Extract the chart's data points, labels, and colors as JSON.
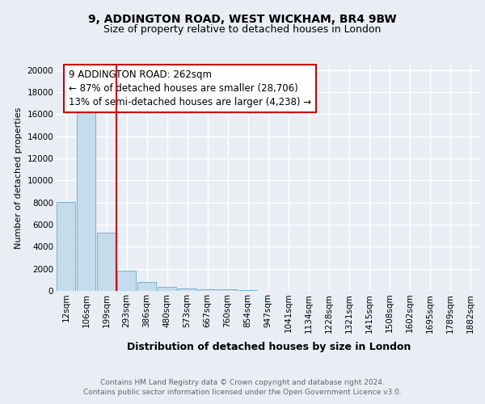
{
  "title1": "9, ADDINGTON ROAD, WEST WICKHAM, BR4 9BW",
  "title2": "Size of property relative to detached houses in London",
  "xlabel": "Distribution of detached houses by size in London",
  "ylabel": "Number of detached properties",
  "categories": [
    "12sqm",
    "106sqm",
    "199sqm",
    "293sqm",
    "386sqm",
    "480sqm",
    "573sqm",
    "667sqm",
    "760sqm",
    "854sqm",
    "947sqm",
    "1041sqm",
    "1134sqm",
    "1228sqm",
    "1321sqm",
    "1415sqm",
    "1508sqm",
    "1602sqm",
    "1695sqm",
    "1789sqm",
    "1882sqm"
  ],
  "values": [
    8050,
    16500,
    5300,
    1800,
    800,
    350,
    200,
    150,
    110,
    100,
    0,
    0,
    0,
    0,
    0,
    0,
    0,
    0,
    0,
    0,
    0
  ],
  "bar_color": "#c5dced",
  "bar_edge_color": "#7bafd4",
  "vline_x": 2.5,
  "vline_color": "#cc0000",
  "annotation_line1": "9 ADDINGTON ROAD: 262sqm",
  "annotation_line2": "← 87% of detached houses are smaller (28,706)",
  "annotation_line3": "13% of semi-detached houses are larger (4,238) →",
  "annotation_box_color": "white",
  "annotation_box_edge": "#cc0000",
  "ylim": [
    0,
    20500
  ],
  "yticks": [
    0,
    2000,
    4000,
    6000,
    8000,
    10000,
    12000,
    14000,
    16000,
    18000,
    20000
  ],
  "bg_color": "#e8eef4",
  "plot_bg": "#e8eef4",
  "footer": "Contains HM Land Registry data © Crown copyright and database right 2024.\nContains public sector information licensed under the Open Government Licence v3.0.",
  "title1_fontsize": 10,
  "title2_fontsize": 9,
  "xlabel_fontsize": 9,
  "ylabel_fontsize": 8,
  "tick_fontsize": 7.5,
  "annotation_fontsize": 8.5,
  "footer_fontsize": 6.5,
  "grid_color": "white",
  "grid_lw": 1.0
}
